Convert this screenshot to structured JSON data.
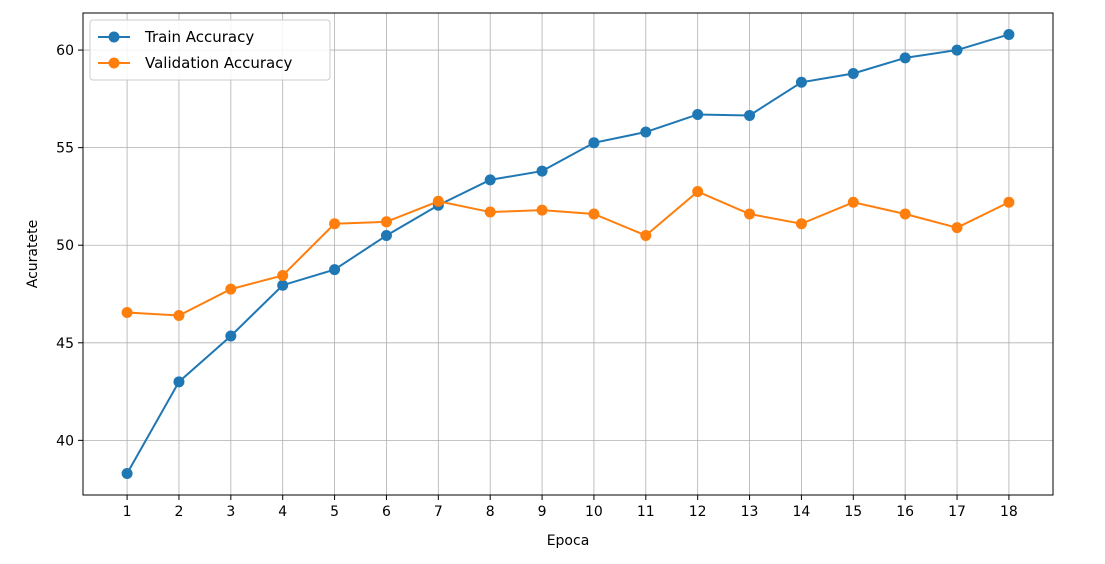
{
  "chart_data": {
    "type": "line",
    "xlabel": "Epoca",
    "ylabel": "Acuratete",
    "x": [
      1,
      2,
      3,
      4,
      5,
      6,
      7,
      8,
      9,
      10,
      11,
      12,
      13,
      14,
      15,
      16,
      17,
      18
    ],
    "x_ticks": [
      "1",
      "2",
      "3",
      "4",
      "5",
      "6",
      "7",
      "8",
      "9",
      "10",
      "11",
      "12",
      "13",
      "14",
      "15",
      "16",
      "17",
      "18"
    ],
    "y_ticks": [
      "40",
      "45",
      "50",
      "55",
      "60"
    ],
    "y_tick_values": [
      40,
      45,
      50,
      55,
      60
    ],
    "xlim": [
      0.15,
      18.85
    ],
    "ylim": [
      37.2,
      61.9
    ],
    "grid": true,
    "legend_position": "upper-left",
    "series": [
      {
        "name": "Train Accuracy",
        "color": "#1f77b4",
        "marker": "circle",
        "values": [
          38.3,
          43.0,
          45.35,
          47.95,
          48.75,
          50.5,
          52.05,
          53.35,
          53.8,
          55.25,
          55.8,
          56.7,
          56.65,
          58.35,
          58.8,
          59.6,
          60.0,
          60.8
        ]
      },
      {
        "name": "Validation Accuracy",
        "color": "#ff7f0e",
        "marker": "circle",
        "values": [
          46.55,
          46.4,
          47.75,
          48.45,
          51.1,
          51.2,
          52.25,
          51.7,
          51.8,
          51.6,
          50.5,
          52.75,
          51.6,
          51.1,
          52.2,
          51.6,
          50.9,
          52.2
        ]
      }
    ]
  }
}
